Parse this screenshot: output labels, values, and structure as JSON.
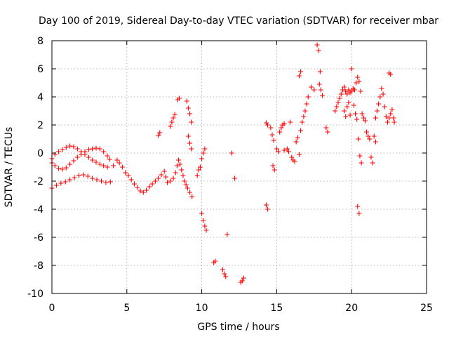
{
  "chart_data": {
    "type": "scatter",
    "title": "Day 100 of 2019, Sidereal Day-to-day VTEC variation (SDTVAR) for receiver mbar",
    "xlabel": "GPS time / hours",
    "ylabel": "SDTVAR / TECUs",
    "xlim": [
      0,
      25
    ],
    "ylim": [
      -10,
      8
    ],
    "xticks": [
      0,
      5,
      10,
      15,
      20,
      25
    ],
    "yticks": [
      -10,
      -8,
      -6,
      -4,
      -2,
      0,
      2,
      4,
      6,
      8
    ],
    "grid": true,
    "marker": "+",
    "color": "#ff0000",
    "series": [
      {
        "name": "SDTVAR",
        "points": [
          [
            0.0,
            -2.5
          ],
          [
            0.3,
            -2.3
          ],
          [
            0.6,
            -2.15
          ],
          [
            0.9,
            -2.05
          ],
          [
            1.2,
            -1.9
          ],
          [
            1.5,
            -1.75
          ],
          [
            1.8,
            -1.6
          ],
          [
            2.1,
            -1.55
          ],
          [
            2.4,
            -1.65
          ],
          [
            2.7,
            -1.8
          ],
          [
            3.0,
            -1.9
          ],
          [
            3.3,
            -2.0
          ],
          [
            3.6,
            -2.1
          ],
          [
            3.9,
            -2.05
          ],
          [
            0.0,
            -0.4
          ],
          [
            0.2,
            -0.1
          ],
          [
            0.45,
            0.1
          ],
          [
            0.7,
            0.25
          ],
          [
            0.95,
            0.4
          ],
          [
            1.2,
            0.5
          ],
          [
            1.45,
            0.45
          ],
          [
            1.7,
            0.3
          ],
          [
            1.95,
            0.1
          ],
          [
            2.2,
            -0.1
          ],
          [
            2.45,
            -0.3
          ],
          [
            2.7,
            -0.5
          ],
          [
            2.95,
            -0.65
          ],
          [
            3.2,
            -0.8
          ],
          [
            3.45,
            -0.9
          ],
          [
            3.7,
            -1.0
          ],
          [
            0.0,
            -0.7
          ],
          [
            0.2,
            -0.9
          ],
          [
            0.45,
            -1.1
          ],
          [
            0.7,
            -1.15
          ],
          [
            0.95,
            -1.05
          ],
          [
            1.2,
            -0.8
          ],
          [
            1.45,
            -0.55
          ],
          [
            1.7,
            -0.3
          ],
          [
            1.95,
            -0.1
          ],
          [
            2.2,
            0.1
          ],
          [
            2.45,
            0.25
          ],
          [
            2.7,
            0.3
          ],
          [
            2.95,
            0.35
          ],
          [
            3.2,
            0.3
          ],
          [
            3.45,
            0.1
          ],
          [
            3.7,
            -0.2
          ],
          [
            3.85,
            -0.45
          ],
          [
            4.1,
            -0.9
          ],
          [
            4.35,
            -0.5
          ],
          [
            4.5,
            -0.7
          ],
          [
            4.7,
            -1.0
          ],
          [
            4.9,
            -1.4
          ],
          [
            5.1,
            -1.6
          ],
          [
            5.3,
            -1.9
          ],
          [
            5.5,
            -2.2
          ],
          [
            5.7,
            -2.45
          ],
          [
            5.9,
            -2.7
          ],
          [
            6.1,
            -2.8
          ],
          [
            6.3,
            -2.65
          ],
          [
            6.5,
            -2.4
          ],
          [
            6.7,
            -2.2
          ],
          [
            6.9,
            -2.0
          ],
          [
            7.1,
            -1.8
          ],
          [
            7.3,
            -1.55
          ],
          [
            7.5,
            -1.3
          ],
          [
            7.6,
            -1.7
          ],
          [
            7.7,
            -2.1
          ],
          [
            7.9,
            -2.0
          ],
          [
            8.1,
            -1.8
          ],
          [
            8.25,
            -1.4
          ],
          [
            8.35,
            -0.9
          ],
          [
            8.45,
            -0.5
          ],
          [
            8.55,
            -0.8
          ],
          [
            8.65,
            -1.2
          ],
          [
            8.75,
            -1.6
          ],
          [
            8.85,
            -2.0
          ],
          [
            8.95,
            -2.25
          ],
          [
            7.1,
            1.25
          ],
          [
            7.2,
            1.45
          ],
          [
            7.9,
            1.9
          ],
          [
            8.0,
            2.2
          ],
          [
            8.1,
            2.5
          ],
          [
            8.2,
            2.75
          ],
          [
            8.4,
            3.8
          ],
          [
            8.5,
            3.9
          ],
          [
            9.0,
            3.7
          ],
          [
            9.1,
            3.2
          ],
          [
            9.2,
            2.8
          ],
          [
            9.3,
            2.2
          ],
          [
            9.1,
            1.2
          ],
          [
            9.2,
            0.7
          ],
          [
            9.3,
            0.3
          ],
          [
            9.05,
            -2.5
          ],
          [
            9.2,
            -2.8
          ],
          [
            9.35,
            -3.1
          ],
          [
            9.7,
            -1.6
          ],
          [
            9.8,
            -1.2
          ],
          [
            9.9,
            -1.0
          ],
          [
            10.0,
            -0.4
          ],
          [
            10.1,
            0.0
          ],
          [
            10.2,
            0.3
          ],
          [
            10.0,
            -4.3
          ],
          [
            10.1,
            -4.8
          ],
          [
            10.2,
            -5.2
          ],
          [
            10.3,
            -5.5
          ],
          [
            10.8,
            -7.8
          ],
          [
            10.9,
            -7.7
          ],
          [
            11.4,
            -8.3
          ],
          [
            11.5,
            -8.6
          ],
          [
            11.6,
            -8.8
          ],
          [
            11.7,
            -5.8
          ],
          [
            12.0,
            0.0
          ],
          [
            12.2,
            -1.8
          ],
          [
            12.6,
            -9.2
          ],
          [
            12.7,
            -9.1
          ],
          [
            12.8,
            -8.9
          ],
          [
            14.3,
            2.15
          ],
          [
            14.4,
            2.0
          ],
          [
            14.3,
            -3.7
          ],
          [
            14.4,
            -4.0
          ],
          [
            14.6,
            1.8
          ],
          [
            14.7,
            1.3
          ],
          [
            14.8,
            0.9
          ],
          [
            14.75,
            -0.9
          ],
          [
            14.85,
            -1.2
          ],
          [
            15.0,
            0.3
          ],
          [
            15.1,
            0.1
          ],
          [
            15.2,
            1.5
          ],
          [
            15.3,
            1.8
          ],
          [
            15.4,
            2.0
          ],
          [
            15.5,
            2.1
          ],
          [
            15.5,
            0.2
          ],
          [
            15.7,
            0.3
          ],
          [
            15.8,
            0.1
          ],
          [
            15.9,
            2.2
          ],
          [
            16.0,
            -0.3
          ],
          [
            16.1,
            -0.5
          ],
          [
            16.2,
            -0.6
          ],
          [
            16.3,
            0.8
          ],
          [
            16.4,
            1.1
          ],
          [
            16.5,
            -0.1
          ],
          [
            16.6,
            1.6
          ],
          [
            16.7,
            2.2
          ],
          [
            16.8,
            2.6
          ],
          [
            16.9,
            3.0
          ],
          [
            17.0,
            3.5
          ],
          [
            17.1,
            4.0
          ],
          [
            16.5,
            5.5
          ],
          [
            16.6,
            5.8
          ],
          [
            17.3,
            4.7
          ],
          [
            17.5,
            4.5
          ],
          [
            17.7,
            7.7
          ],
          [
            17.8,
            7.3
          ],
          [
            17.9,
            5.8
          ],
          [
            17.85,
            4.9
          ],
          [
            17.95,
            4.5
          ],
          [
            18.05,
            4.1
          ],
          [
            18.3,
            1.8
          ],
          [
            18.4,
            1.5
          ],
          [
            18.9,
            3.0
          ],
          [
            19.0,
            3.3
          ],
          [
            19.1,
            3.6
          ],
          [
            19.2,
            3.9
          ],
          [
            19.3,
            4.2
          ],
          [
            19.4,
            4.5
          ],
          [
            19.5,
            4.7
          ],
          [
            19.6,
            4.4
          ],
          [
            19.7,
            4.2
          ],
          [
            19.8,
            4.5
          ],
          [
            19.9,
            4.3
          ],
          [
            20.0,
            4.4
          ],
          [
            20.1,
            4.6
          ],
          [
            20.2,
            4.5
          ],
          [
            20.3,
            5.0
          ],
          [
            20.4,
            5.4
          ],
          [
            20.5,
            5.1
          ],
          [
            20.6,
            4.4
          ],
          [
            19.5,
            3.0
          ],
          [
            19.6,
            2.6
          ],
          [
            19.7,
            3.3
          ],
          [
            19.8,
            3.6
          ],
          [
            19.9,
            2.7
          ],
          [
            20.0,
            6.0
          ],
          [
            20.15,
            3.4
          ],
          [
            20.25,
            2.8
          ],
          [
            20.35,
            2.4
          ],
          [
            20.45,
            1.0
          ],
          [
            20.55,
            -0.2
          ],
          [
            20.65,
            -0.7
          ],
          [
            20.4,
            -3.8
          ],
          [
            20.5,
            -4.3
          ],
          [
            20.7,
            2.8
          ],
          [
            20.8,
            2.5
          ],
          [
            20.9,
            2.3
          ],
          [
            21.0,
            1.5
          ],
          [
            21.1,
            1.2
          ],
          [
            21.2,
            1.0
          ],
          [
            21.3,
            -0.3
          ],
          [
            21.4,
            -0.7
          ],
          [
            21.5,
            1.2
          ],
          [
            21.6,
            0.8
          ],
          [
            21.6,
            2.5
          ],
          [
            21.7,
            3.0
          ],
          [
            21.8,
            3.5
          ],
          [
            21.9,
            4.0
          ],
          [
            22.0,
            4.6
          ],
          [
            22.1,
            4.2
          ],
          [
            22.2,
            3.3
          ],
          [
            22.3,
            2.6
          ],
          [
            22.4,
            2.2
          ],
          [
            22.5,
            2.5
          ],
          [
            22.6,
            2.8
          ],
          [
            22.7,
            3.1
          ],
          [
            22.8,
            2.5
          ],
          [
            22.85,
            2.2
          ],
          [
            22.5,
            5.7
          ],
          [
            22.6,
            5.6
          ]
        ]
      }
    ]
  }
}
